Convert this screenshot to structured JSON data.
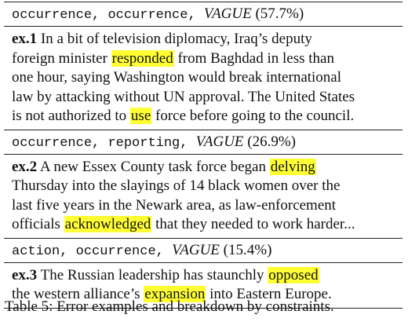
{
  "table": {
    "groups": [
      {
        "header": {
          "label1": "occurrence",
          "label2": "occurrence",
          "relation": "VAGUE",
          "percent": "(57.7%)"
        },
        "example": {
          "id": "ex.1",
          "lines": [
            [
              {
                "t": "In a bit of television diplomacy, Iraq’s deputy"
              }
            ],
            [
              {
                "t": "foreign minister "
              },
              {
                "t": "responded",
                "hl": true
              },
              {
                "t": " from Baghdad in less than"
              }
            ],
            [
              {
                "t": "one hour, saying Washington would break international"
              }
            ],
            [
              {
                "t": "law by attacking without UN approval. The United States"
              }
            ],
            [
              {
                "t": "is not authorized to "
              },
              {
                "t": "use",
                "hl": true
              },
              {
                "t": " force before going to the council."
              }
            ]
          ]
        }
      },
      {
        "header": {
          "label1": "occurrence",
          "label2": "reporting",
          "relation": "VAGUE",
          "percent": "(26.9%)"
        },
        "example": {
          "id": "ex.2",
          "lines": [
            [
              {
                "t": "A new Essex County task force began "
              },
              {
                "t": "delving",
                "hl": true
              }
            ],
            [
              {
                "t": "Thursday into the slayings of 14 black women over the"
              }
            ],
            [
              {
                "t": "last five years in the Newark area, as law-enforcement"
              }
            ],
            [
              {
                "t": "officials "
              },
              {
                "t": "acknowledged",
                "hl": true
              },
              {
                "t": " that they needed to work harder..."
              }
            ]
          ]
        }
      },
      {
        "header": {
          "label1": "action",
          "label2": "occurrence",
          "relation": "VAGUE",
          "percent": "(15.4%)"
        },
        "example": {
          "id": "ex.3",
          "lines": [
            [
              {
                "t": "The Russian leadership has staunchly "
              },
              {
                "t": "opposed",
                "hl": true
              }
            ],
            [
              {
                "t": "the western alliance’s "
              },
              {
                "t": "expansion",
                "hl": true
              },
              {
                "t": " into Eastern Europe."
              }
            ]
          ]
        }
      }
    ]
  },
  "caption": "Table 5: Error examples and breakdown by constraints.",
  "colors": {
    "highlight": "#ffff33",
    "text": "#111111"
  }
}
